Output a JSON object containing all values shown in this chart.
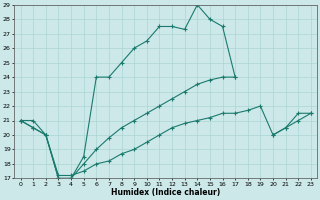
{
  "xlabel": "Humidex (Indice chaleur)",
  "x": [
    0,
    1,
    2,
    3,
    4,
    5,
    6,
    7,
    8,
    9,
    10,
    11,
    12,
    13,
    14,
    15,
    16,
    17,
    18,
    19,
    20,
    21,
    22,
    23
  ],
  "y_main": [
    21,
    21,
    20,
    17,
    17,
    18.5,
    24,
    24,
    25,
    26,
    26.5,
    27.5,
    27.5,
    27.3,
    29,
    28,
    27.5,
    24,
    null,
    null,
    null,
    null,
    null,
    null
  ],
  "y_mid": [
    21,
    20.5,
    20,
    17,
    17,
    18,
    19,
    19.8,
    20.5,
    21,
    21.5,
    22,
    22.5,
    23,
    23.5,
    23.8,
    24,
    24,
    null,
    null,
    20,
    20.5,
    21.5,
    21.5
  ],
  "y_low": [
    21,
    20.5,
    20,
    17.2,
    17.2,
    17.5,
    18,
    18.2,
    18.7,
    19,
    19.5,
    20,
    20.5,
    20.8,
    21,
    21.2,
    21.5,
    21.5,
    21.7,
    22,
    20,
    20.5,
    21,
    21.5
  ],
  "ylim": [
    17,
    29
  ],
  "xlim": [
    -0.5,
    23.5
  ],
  "yticks": [
    17,
    18,
    19,
    20,
    21,
    22,
    23,
    24,
    25,
    26,
    27,
    28,
    29
  ],
  "xticks": [
    0,
    1,
    2,
    3,
    4,
    5,
    6,
    7,
    8,
    9,
    10,
    11,
    12,
    13,
    14,
    15,
    16,
    17,
    18,
    19,
    20,
    21,
    22,
    23
  ],
  "bg_color": "#cce8e8",
  "grid_color": "#aad4d4",
  "line_color": "#1a7a6e",
  "figsize": [
    3.2,
    2.0
  ],
  "dpi": 100
}
